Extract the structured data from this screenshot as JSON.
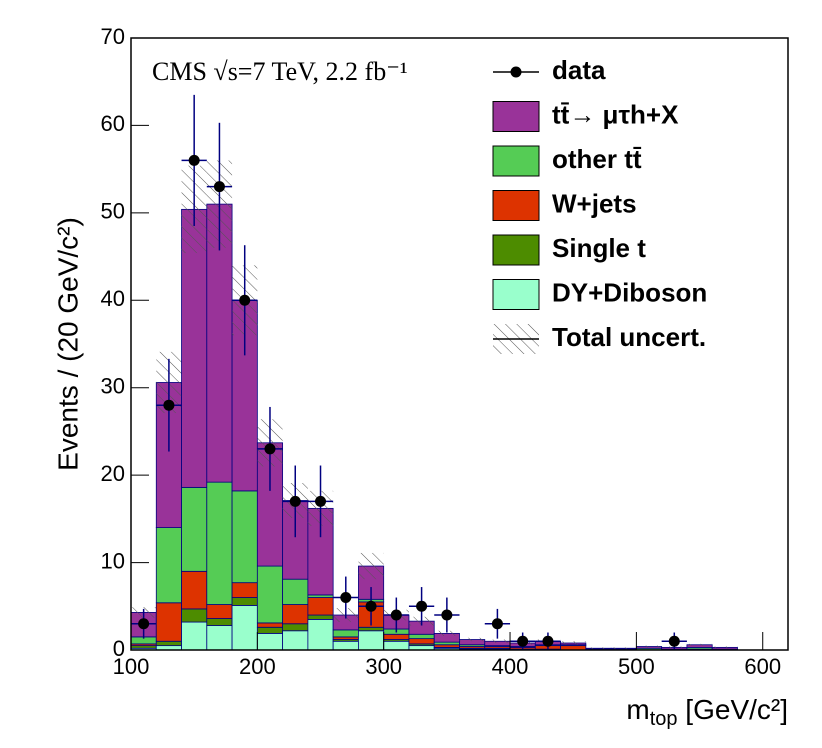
{
  "chart_data": {
    "type": "stacked_histogram",
    "annotation": "CMS √s=7 TeV, 2.2 fb⁻¹",
    "ylabel": "Events / (20 GeV/c²)",
    "xlabel": [
      "m",
      "top",
      " [GeV/c²]"
    ],
    "bins": [
      100,
      120,
      140,
      160,
      180,
      200,
      220,
      240,
      260,
      280,
      300,
      320,
      340,
      360,
      380,
      400,
      420,
      440,
      460,
      480,
      500,
      520,
      540,
      560,
      580
    ],
    "series": [
      {
        "name": "DY+Diboson",
        "color": "#99ffcc",
        "values": [
          0.2,
          0.5,
          3.2,
          2.8,
          5.1,
          1.9,
          2.2,
          3.5,
          1.0,
          2.2,
          1.0,
          0.5,
          0.2,
          0.1,
          0.1,
          0.1,
          0.1,
          0,
          0,
          0,
          0,
          0,
          0.1,
          0
        ]
      },
      {
        "name": "Single t",
        "color": "#4d8c00",
        "values": [
          0.3,
          0.5,
          1.5,
          0.8,
          0.9,
          0.7,
          0.8,
          0.5,
          0.2,
          0.4,
          0.2,
          0.2,
          0.1,
          0.1,
          0.1,
          0,
          0,
          0,
          0,
          0,
          0,
          0,
          0,
          0
        ]
      },
      {
        "name": "W+jets",
        "color": "#dd3300",
        "values": [
          0.2,
          4.4,
          4.3,
          1.6,
          1.7,
          0.5,
          2.2,
          2.0,
          0.3,
          2.9,
          0.6,
          0.6,
          0.3,
          0.2,
          0.2,
          0.2,
          0.4,
          0.5,
          0,
          0,
          0,
          0,
          0,
          0
        ]
      },
      {
        "name": "other tt̄",
        "color": "#55cc55",
        "values": [
          0.8,
          8.6,
          9.6,
          14.0,
          10.5,
          6.5,
          2.9,
          0.3,
          0.8,
          0.3,
          0.6,
          0.5,
          0.3,
          0.2,
          0.1,
          0.1,
          0.1,
          0.1,
          0.1,
          0.1,
          0.2,
          0.1,
          0.2,
          0.1
        ]
      },
      {
        "name": "tt̄→ μτh+X",
        "color": "#993399",
        "values": [
          2.8,
          16.6,
          31.8,
          31.8,
          21.8,
          14.1,
          9.0,
          9.9,
          1.7,
          3.8,
          1.6,
          1.5,
          1.0,
          0.6,
          0.5,
          0.4,
          0.4,
          0.2,
          0.1,
          0.1,
          0.2,
          0.2,
          0.3,
          0.2
        ]
      }
    ],
    "uncertainty": {
      "name": "Total uncert.",
      "values": [
        0.6,
        3.5,
        5,
        5,
        4,
        2.7,
        2,
        2,
        0.8,
        1.5,
        0.6,
        0.5,
        0.3,
        0.2,
        0.2,
        0.2,
        0.2,
        0.2,
        0.1,
        0.1,
        0.1,
        0.1,
        0.1,
        0.1
      ]
    },
    "data": {
      "name": "data",
      "x": [
        110,
        130,
        150,
        170,
        190,
        210,
        230,
        250,
        270,
        290,
        310,
        330,
        350,
        390,
        410,
        430,
        530
      ],
      "values": [
        3,
        28,
        56,
        53,
        40,
        23,
        17,
        17,
        6,
        5,
        4,
        5,
        4,
        3,
        1,
        1,
        1
      ],
      "errors": [
        1.7,
        5.3,
        7.5,
        7.3,
        6.3,
        4.8,
        4.1,
        4.1,
        2.4,
        2.2,
        2.0,
        2.2,
        2.0,
        1.7,
        1.0,
        1.0,
        1.0
      ]
    },
    "xlim": [
      100,
      620
    ],
    "ylim": [
      0,
      70
    ],
    "xticks": [
      100,
      200,
      300,
      400,
      500,
      600
    ],
    "yticks": [
      0,
      10,
      20,
      30,
      40,
      50,
      60,
      70
    ]
  }
}
